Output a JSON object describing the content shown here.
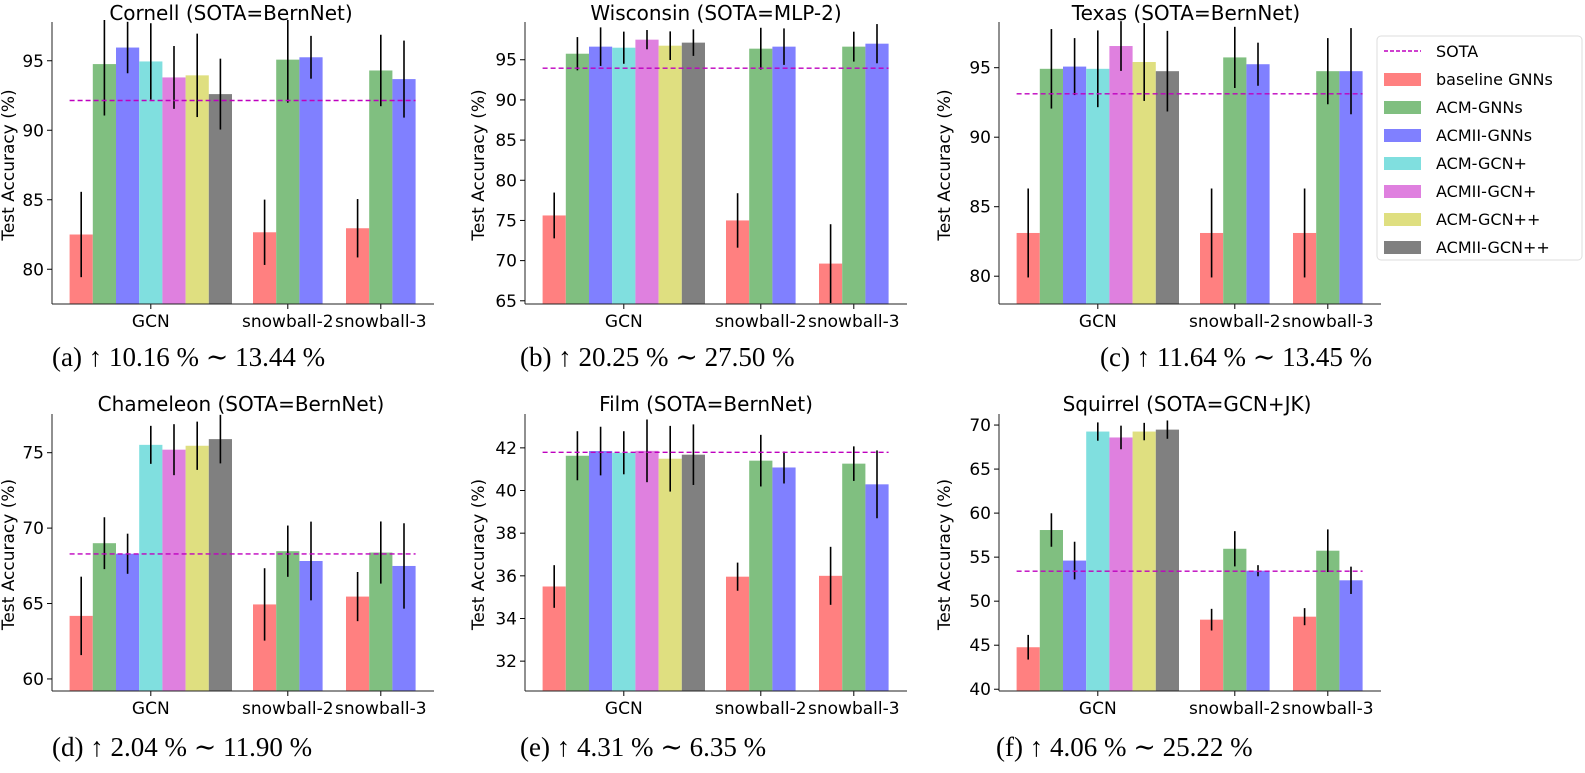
{
  "legend": {
    "entries": [
      {
        "label": "SOTA",
        "type": "line",
        "color": "#bf00bf"
      },
      {
        "label": "baseline GNNs",
        "type": "patch",
        "color": "#ff8080"
      },
      {
        "label": "ACM-GNNs",
        "type": "patch",
        "color": "#80bf80"
      },
      {
        "label": "ACMII-GNNs",
        "type": "patch",
        "color": "#8080ff"
      },
      {
        "label": "ACM-GCN+",
        "type": "patch",
        "color": "#80dfdf"
      },
      {
        "label": "ACMII-GCN+",
        "type": "patch",
        "color": "#df80df"
      },
      {
        "label": "ACM-GCN++",
        "type": "patch",
        "color": "#dfdf80"
      },
      {
        "label": "ACMII-GCN++",
        "type": "patch",
        "color": "#808080"
      }
    ]
  },
  "chart_data": [
    {
      "type": "bar",
      "title": "Cornell (SOTA=BernNet)",
      "caption": "(a) ↑ 10.16 % ∼ 13.44 %",
      "xlabel": "",
      "ylabel": "Test Accuracy (%)",
      "ylim": [
        77.5,
        97.5
      ],
      "yticks": [
        80,
        85,
        90,
        95
      ],
      "sota": 92.14,
      "categories": [
        "GCN",
        "snowball-2",
        "snowball-3"
      ],
      "groups": [
        {
          "category": "GCN",
          "bars": [
            {
              "series": "baseline GNNs",
              "value": 82.5,
              "err": 3.07
            },
            {
              "series": "ACM-GNNs",
              "value": 94.76,
              "err": 3.7
            },
            {
              "series": "ACMII-GNNs",
              "value": 95.95,
              "err": 1.85
            },
            {
              "series": "ACM-GCN+",
              "value": 94.95,
              "err": 2.75
            },
            {
              "series": "ACMII-GCN+",
              "value": 93.8,
              "err": 2.26
            },
            {
              "series": "ACM-GCN++",
              "value": 93.95,
              "err": 3.0
            },
            {
              "series": "ACMII-GCN++",
              "value": 92.6,
              "err": 2.55
            }
          ]
        },
        {
          "category": "snowball-2",
          "bars": [
            {
              "series": "baseline GNNs",
              "value": 82.66,
              "err": 2.35
            },
            {
              "series": "ACM-GNNs",
              "value": 95.08,
              "err": 3.1
            },
            {
              "series": "ACMII-GNNs",
              "value": 95.25,
              "err": 1.54
            }
          ]
        },
        {
          "category": "snowball-3",
          "bars": [
            {
              "series": "baseline GNNs",
              "value": 82.95,
              "err": 2.1
            },
            {
              "series": "ACM-GNNs",
              "value": 94.3,
              "err": 2.57
            },
            {
              "series": "ACMII-GNNs",
              "value": 93.68,
              "err": 2.77
            }
          ]
        }
      ]
    },
    {
      "type": "bar",
      "title": "Wisconsin (SOTA=MLP-2)",
      "caption": "(b) ↑ 20.25 % ∼ 27.50 %",
      "xlabel": "",
      "ylabel": "Test Accuracy (%)",
      "ylim": [
        64.6,
        99.2
      ],
      "yticks": [
        65,
        70,
        75,
        80,
        85,
        90,
        95
      ],
      "sota": 93.95,
      "categories": [
        "GCN",
        "snowball-2",
        "snowball-3"
      ],
      "groups": [
        {
          "category": "GCN",
          "bars": [
            {
              "series": "baseline GNNs",
              "value": 75.62,
              "err": 2.85
            },
            {
              "series": "ACM-GNNs",
              "value": 95.75,
              "err": 2.07
            },
            {
              "series": "ACMII-GNNs",
              "value": 96.63,
              "err": 2.4
            },
            {
              "series": "ACM-GCN+",
              "value": 96.5,
              "err": 2.0
            },
            {
              "series": "ACMII-GCN+",
              "value": 97.5,
              "err": 1.2
            },
            {
              "series": "ACM-GCN++",
              "value": 96.75,
              "err": 1.78
            },
            {
              "series": "ACMII-GCN++",
              "value": 97.13,
              "err": 1.65
            }
          ]
        },
        {
          "category": "snowball-2",
          "bars": [
            {
              "series": "baseline GNNs",
              "value": 75.0,
              "err": 3.39
            },
            {
              "series": "ACM-GNNs",
              "value": 96.38,
              "err": 2.6
            },
            {
              "series": "ACMII-GNNs",
              "value": 96.63,
              "err": 2.27
            }
          ]
        },
        {
          "category": "snowball-3",
          "bars": [
            {
              "series": "baseline GNNs",
              "value": 69.63,
              "err": 4.9
            },
            {
              "series": "ACM-GNNs",
              "value": 96.63,
              "err": 1.86
            },
            {
              "series": "ACMII-GNNs",
              "value": 97.0,
              "err": 2.44
            }
          ]
        }
      ]
    },
    {
      "type": "bar",
      "title": "Texas (SOTA=BernNet)",
      "caption": "(c) ↑ 11.64 % ∼ 13.45 %",
      "xlabel": "",
      "ylabel": "Test Accuracy (%)",
      "ylim": [
        78.0,
        98.0
      ],
      "yticks": [
        80,
        85,
        90,
        95
      ],
      "sota": 93.12,
      "categories": [
        "GCN",
        "snowball-2",
        "snowball-3"
      ],
      "groups": [
        {
          "category": "GCN",
          "bars": [
            {
              "series": "baseline GNNs",
              "value": 83.11,
              "err": 3.2
            },
            {
              "series": "ACM-GNNs",
              "value": 94.92,
              "err": 2.86
            },
            {
              "series": "ACMII-GNNs",
              "value": 95.08,
              "err": 2.05
            },
            {
              "series": "ACM-GCN+",
              "value": 94.92,
              "err": 2.76
            },
            {
              "series": "ACMII-GCN+",
              "value": 96.56,
              "err": 1.79
            },
            {
              "series": "ACM-GCN++",
              "value": 95.41,
              "err": 2.8
            },
            {
              "series": "ACMII-GCN++",
              "value": 94.75,
              "err": 2.9
            }
          ]
        },
        {
          "category": "snowball-2",
          "bars": [
            {
              "series": "baseline GNNs",
              "value": 83.11,
              "err": 3.2
            },
            {
              "series": "ACM-GNNs",
              "value": 95.74,
              "err": 2.2
            },
            {
              "series": "ACMII-GNNs",
              "value": 95.25,
              "err": 1.55
            }
          ]
        },
        {
          "category": "snowball-3",
          "bars": [
            {
              "series": "baseline GNNs",
              "value": 83.11,
              "err": 3.2
            },
            {
              "series": "ACM-GNNs",
              "value": 94.75,
              "err": 2.38
            },
            {
              "series": "ACMII-GNNs",
              "value": 94.75,
              "err": 3.1
            }
          ]
        }
      ]
    },
    {
      "type": "bar",
      "title": "Chameleon (SOTA=BernNet)",
      "caption": "(d) ↑ 2.04 % ∼ 11.90 %",
      "xlabel": "",
      "ylabel": "Test Accuracy (%)",
      "ylim": [
        59.2,
        77.3
      ],
      "yticks": [
        60,
        65,
        70,
        75
      ],
      "sota": 68.29,
      "categories": [
        "GCN",
        "snowball-2",
        "snowball-3"
      ],
      "groups": [
        {
          "category": "GCN",
          "bars": [
            {
              "series": "baseline GNNs",
              "value": 64.18,
              "err": 2.6
            },
            {
              "series": "ACM-GNNs",
              "value": 69.0,
              "err": 1.72
            },
            {
              "series": "ACMII-GNNs",
              "value": 68.3,
              "err": 1.33
            },
            {
              "series": "ACM-GCN+",
              "value": 75.52,
              "err": 1.26
            },
            {
              "series": "ACMII-GCN+",
              "value": 75.2,
              "err": 1.69
            },
            {
              "series": "ACM-GCN++",
              "value": 75.46,
              "err": 1.6
            },
            {
              "series": "ACMII-GCN++",
              "value": 75.9,
              "err": 1.61
            }
          ]
        },
        {
          "category": "snowball-2",
          "bars": [
            {
              "series": "baseline GNNs",
              "value": 64.94,
              "err": 2.4
            },
            {
              "series": "ACM-GNNs",
              "value": 68.47,
              "err": 1.7
            },
            {
              "series": "ACMII-GNNs",
              "value": 67.82,
              "err": 2.61
            }
          ]
        },
        {
          "category": "snowball-3",
          "bars": [
            {
              "series": "baseline GNNs",
              "value": 65.46,
              "err": 1.63
            },
            {
              "series": "ACM-GNNs",
              "value": 68.38,
              "err": 2.06
            },
            {
              "series": "ACMII-GNNs",
              "value": 67.49,
              "err": 2.83
            }
          ]
        }
      ]
    },
    {
      "type": "bar",
      "title": "Film (SOTA=BernNet)",
      "caption": "(e) ↑ 4.31 % ∼ 6.35 %",
      "xlabel": "",
      "ylabel": "Test Accuracy (%)",
      "ylim": [
        30.6,
        43.4
      ],
      "yticks": [
        32,
        34,
        36,
        38,
        40,
        42
      ],
      "sota": 41.79,
      "categories": [
        "GCN",
        "snowball-2",
        "snowball-3"
      ],
      "groups": [
        {
          "category": "GCN",
          "bars": [
            {
              "series": "baseline GNNs",
              "value": 35.5,
              "err": 1.0
            },
            {
              "series": "ACM-GNNs",
              "value": 41.63,
              "err": 1.15
            },
            {
              "series": "ACMII-GNNs",
              "value": 41.85,
              "err": 1.14
            },
            {
              "series": "ACM-GCN+",
              "value": 41.77,
              "err": 1.01
            },
            {
              "series": "ACMII-GCN+",
              "value": 41.86,
              "err": 1.47
            },
            {
              "series": "ACM-GCN++",
              "value": 41.49,
              "err": 1.54
            },
            {
              "series": "ACMII-GCN++",
              "value": 41.68,
              "err": 1.42
            }
          ]
        },
        {
          "category": "snowball-2",
          "bars": [
            {
              "series": "baseline GNNs",
              "value": 35.96,
              "err": 0.66
            },
            {
              "series": "ACM-GNNs",
              "value": 41.4,
              "err": 1.21
            },
            {
              "series": "ACMII-GNNs",
              "value": 41.08,
              "err": 0.75
            }
          ]
        },
        {
          "category": "snowball-3",
          "bars": [
            {
              "series": "baseline GNNs",
              "value": 36.0,
              "err": 1.36
            },
            {
              "series": "ACM-GNNs",
              "value": 41.26,
              "err": 0.81
            },
            {
              "series": "ACMII-GNNs",
              "value": 40.29,
              "err": 1.59
            }
          ]
        }
      ]
    },
    {
      "type": "bar",
      "title": "Squirrel (SOTA=GCN+JK)",
      "caption": "(f) ↑ 4.06 % ∼ 25.22 %",
      "xlabel": "",
      "ylabel": "Test Accuracy (%)",
      "ylim": [
        39.8,
        70.8
      ],
      "yticks": [
        40,
        45,
        50,
        55,
        60,
        65,
        70
      ],
      "sota": 53.4,
      "categories": [
        "GCN",
        "snowball-2",
        "snowball-3"
      ],
      "groups": [
        {
          "category": "GCN",
          "bars": [
            {
              "series": "baseline GNNs",
              "value": 44.77,
              "err": 1.4
            },
            {
              "series": "ACM-GNNs",
              "value": 58.08,
              "err": 1.9
            },
            {
              "series": "ACMII-GNNs",
              "value": 54.61,
              "err": 2.14
            },
            {
              "series": "ACM-GCN+",
              "value": 69.26,
              "err": 1.04
            },
            {
              "series": "ACMII-GCN+",
              "value": 68.59,
              "err": 1.34
            },
            {
              "series": "ACM-GCN++",
              "value": 69.26,
              "err": 0.99
            },
            {
              "series": "ACMII-GCN++",
              "value": 69.48,
              "err": 1.04
            }
          ]
        },
        {
          "category": "snowball-2",
          "bars": [
            {
              "series": "baseline GNNs",
              "value": 47.9,
              "err": 1.23
            },
            {
              "series": "ACM-GNNs",
              "value": 55.95,
              "err": 2.0
            },
            {
              "series": "ACMII-GNNs",
              "value": 53.46,
              "err": 0.63
            }
          ]
        },
        {
          "category": "snowball-3",
          "bars": [
            {
              "series": "baseline GNNs",
              "value": 48.24,
              "err": 0.97
            },
            {
              "series": "ACM-GNNs",
              "value": 55.73,
              "err": 2.42
            },
            {
              "series": "ACMII-GNNs",
              "value": 52.37,
              "err": 1.55
            }
          ]
        }
      ]
    }
  ]
}
